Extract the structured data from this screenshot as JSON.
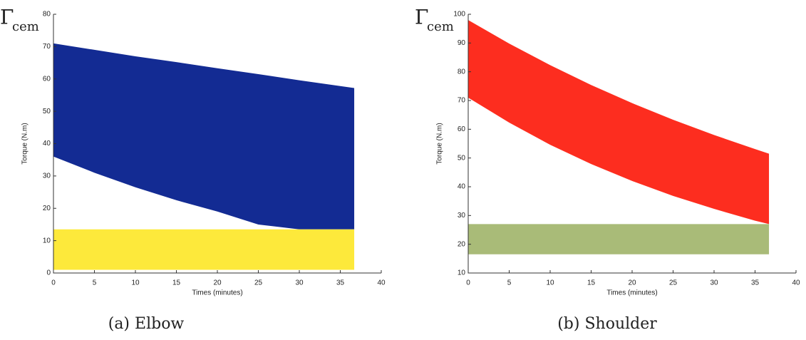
{
  "chart_data": [
    {
      "type": "band",
      "y_symbol": "Γ",
      "y_symbol_sub": "cem",
      "ylabel": "Torque (N.m)",
      "xlabel": "Times (minutes)",
      "caption": "(a) Elbow",
      "x": [
        0,
        5,
        10,
        15,
        20,
        25,
        30,
        35,
        36.7
      ],
      "series": [
        {
          "color": "#132b93",
          "upper": [
            71,
            69,
            67,
            65.2,
            63.3,
            61.5,
            59.6,
            57.8,
            57.2
          ],
          "lower": [
            36,
            31,
            26.5,
            22.5,
            19,
            15,
            13.5,
            13.5,
            13.5
          ]
        },
        {
          "color": "#fde93b",
          "upper": [
            13.5,
            13.5,
            13.5,
            13.5,
            13.5,
            13.5,
            13.5,
            13.5,
            13.5
          ],
          "lower": [
            1,
            1,
            1,
            1,
            1,
            1,
            1,
            1,
            1
          ]
        }
      ],
      "xlim": [
        0,
        40
      ],
      "xticks": [
        0,
        5,
        10,
        15,
        20,
        25,
        30,
        35,
        40
      ],
      "ylim": [
        0,
        80
      ],
      "yticks": [
        0,
        10,
        20,
        30,
        40,
        50,
        60,
        70,
        80
      ]
    },
    {
      "type": "band",
      "y_symbol": "Γ",
      "y_symbol_sub": "cem",
      "ylabel": "Torque (N.m)",
      "xlabel": "Times (minutes)",
      "caption": "(b) Shoulder",
      "x": [
        0,
        5,
        10,
        15,
        20,
        25,
        30,
        35,
        36.7
      ],
      "series": [
        {
          "color": "#fd2d1f",
          "upper": [
            98,
            89.8,
            82.3,
            75.4,
            69.1,
            63.3,
            58,
            53.1,
            51.5
          ],
          "lower": [
            71,
            62.3,
            54.6,
            47.9,
            42,
            36.8,
            32.3,
            28.2,
            27
          ]
        },
        {
          "color": "#a9bb78",
          "upper": [
            27,
            27,
            27,
            27,
            27,
            27,
            27,
            27,
            27
          ],
          "lower": [
            16.5,
            16.5,
            16.5,
            16.5,
            16.5,
            16.5,
            16.5,
            16.5,
            16.5
          ]
        }
      ],
      "xlim": [
        0,
        40
      ],
      "xticks": [
        0,
        5,
        10,
        15,
        20,
        25,
        30,
        35,
        40
      ],
      "ylim": [
        10,
        100
      ],
      "yticks": [
        10,
        20,
        30,
        40,
        50,
        60,
        70,
        80,
        90,
        100
      ]
    }
  ]
}
